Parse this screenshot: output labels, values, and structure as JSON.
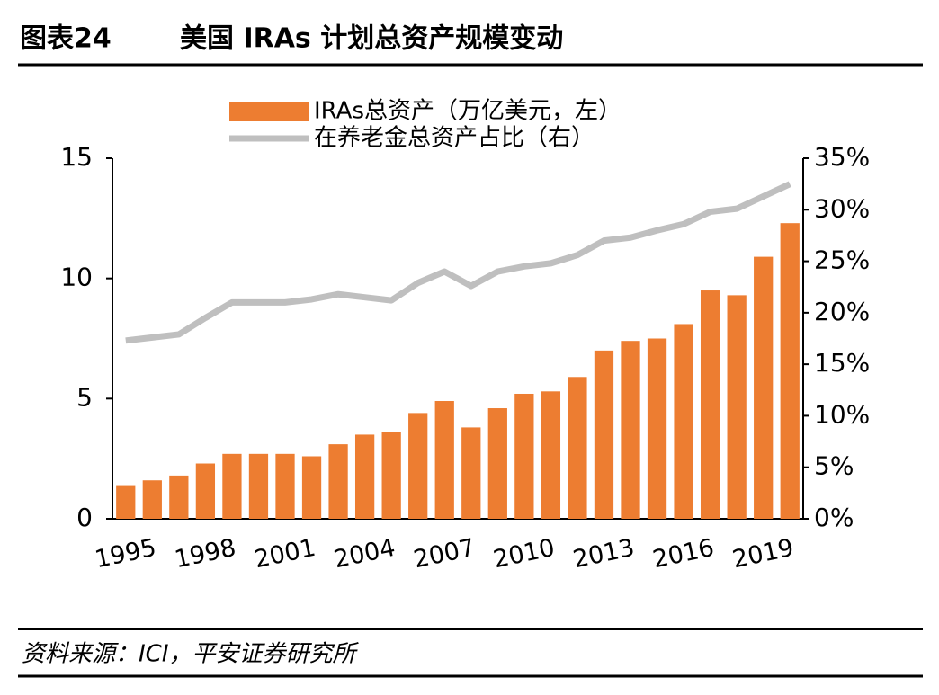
{
  "header": {
    "label": "图表24",
    "title": "美国 IRAs 计划总资产规模变动"
  },
  "chart_data": {
    "type": "bar_line",
    "categories": [
      "1995",
      null,
      null,
      "1998",
      null,
      null,
      "2001",
      null,
      null,
      "2004",
      null,
      null,
      "2007",
      null,
      null,
      "2010",
      null,
      null,
      "2013",
      null,
      null,
      "2016",
      null,
      null,
      "2019",
      null
    ],
    "series": [
      {
        "name": "IRAs总资产（万亿美元，左）",
        "color": "#ed7d31",
        "type": "bar",
        "values": [
          1.4,
          1.6,
          1.8,
          2.3,
          2.7,
          2.7,
          2.7,
          2.6,
          3.1,
          3.5,
          3.6,
          4.4,
          4.9,
          3.8,
          4.6,
          5.2,
          5.3,
          5.9,
          7.0,
          7.4,
          7.5,
          8.1,
          9.5,
          9.3,
          10.9,
          12.3
        ]
      },
      {
        "name": "在养老金总资产占比（右）",
        "color": "#bfbfbf",
        "type": "line",
        "axis": "y2",
        "values": [
          17.3,
          17.6,
          17.9,
          19.5,
          21.0,
          21.0,
          21.0,
          21.3,
          21.8,
          21.5,
          21.2,
          22.9,
          24.0,
          22.6,
          24.0,
          24.5,
          24.8,
          25.6,
          27.0,
          27.3,
          28.0,
          28.6,
          29.8,
          30.1,
          31.3,
          32.5
        ]
      }
    ],
    "ylim": [
      0,
      15
    ],
    "yticks": [
      0,
      5,
      10,
      15
    ],
    "y2lim": [
      0,
      35
    ],
    "y2ticks": [
      {
        "value": 0,
        "label": "0%"
      },
      {
        "value": 5,
        "label": "5%"
      },
      {
        "value": 10,
        "label": "10%"
      },
      {
        "value": 15,
        "label": "15%"
      },
      {
        "value": 20,
        "label": "20%"
      },
      {
        "value": 25,
        "label": "25%"
      },
      {
        "value": 30,
        "label": "30%"
      },
      {
        "value": 35,
        "label": "35%"
      }
    ],
    "legend": "top"
  },
  "footer": {
    "source": "资料来源：ICI，平安证券研究所"
  }
}
